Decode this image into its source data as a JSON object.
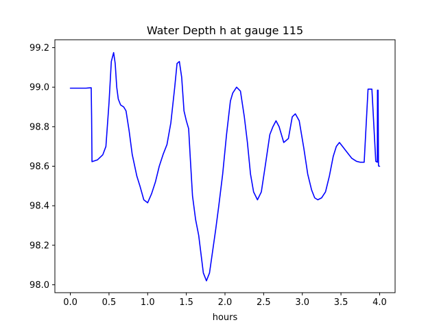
{
  "chart_data": {
    "type": "line",
    "title": "Water Depth h at gauge 115",
    "xlabel": "hours",
    "ylabel": "",
    "xlim": [
      -0.2,
      4.2
    ],
    "ylim": [
      97.96,
      99.24
    ],
    "xticks": [
      0.0,
      0.5,
      1.0,
      1.5,
      2.0,
      2.5,
      3.0,
      3.5,
      4.0
    ],
    "xtick_labels": [
      "0.0",
      "0.5",
      "1.0",
      "1.5",
      "2.0",
      "2.5",
      "3.0",
      "3.5",
      "4.0"
    ],
    "yticks": [
      98.0,
      98.2,
      98.4,
      98.6,
      98.8,
      99.0,
      99.2
    ],
    "ytick_labels": [
      "98.0",
      "98.2",
      "98.4",
      "98.6",
      "98.8",
      "99.0",
      "99.2"
    ],
    "grid": false,
    "series": [
      {
        "color": "#0000ff",
        "x": [
          0.0,
          0.1,
          0.2,
          0.27,
          0.275,
          0.28,
          0.35,
          0.42,
          0.46,
          0.5,
          0.53,
          0.56,
          0.58,
          0.6,
          0.62,
          0.65,
          0.69,
          0.72,
          0.76,
          0.8,
          0.86,
          0.9,
          0.95,
          1.0,
          1.05,
          1.1,
          1.15,
          1.2,
          1.25,
          1.3,
          1.35,
          1.38,
          1.41,
          1.44,
          1.47,
          1.5,
          1.53,
          1.55,
          1.58,
          1.62,
          1.66,
          1.72,
          1.76,
          1.8,
          1.84,
          1.88,
          1.92,
          1.97,
          2.02,
          2.07,
          2.1,
          2.15,
          2.2,
          2.25,
          2.29,
          2.33,
          2.37,
          2.42,
          2.47,
          2.52,
          2.58,
          2.62,
          2.66,
          2.7,
          2.76,
          2.82,
          2.87,
          2.91,
          2.96,
          3.02,
          3.07,
          3.12,
          3.16,
          3.2,
          3.25,
          3.3,
          3.35,
          3.4,
          3.44,
          3.48,
          3.52,
          3.58,
          3.64,
          3.7,
          3.75,
          3.8,
          3.85,
          3.9,
          3.95,
          3.97,
          3.972,
          3.98,
          3.985,
          3.988,
          3.992,
          4.0
        ],
        "y": [
          98.995,
          98.995,
          98.995,
          98.997,
          98.85,
          98.623,
          98.632,
          98.658,
          98.7,
          98.92,
          99.13,
          99.175,
          99.12,
          99.0,
          98.94,
          98.91,
          98.9,
          98.88,
          98.78,
          98.66,
          98.55,
          98.5,
          98.43,
          98.415,
          98.46,
          98.52,
          98.6,
          98.66,
          98.71,
          98.82,
          99.0,
          99.12,
          99.13,
          99.05,
          98.88,
          98.83,
          98.79,
          98.65,
          98.45,
          98.33,
          98.25,
          98.06,
          98.02,
          98.06,
          98.17,
          98.28,
          98.4,
          98.56,
          98.76,
          98.93,
          98.97,
          99.0,
          98.98,
          98.85,
          98.72,
          98.56,
          98.47,
          98.43,
          98.47,
          98.6,
          98.76,
          98.8,
          98.83,
          98.8,
          98.72,
          98.74,
          98.85,
          98.865,
          98.83,
          98.69,
          98.56,
          98.48,
          98.44,
          98.43,
          98.44,
          98.47,
          98.55,
          98.65,
          98.7,
          98.72,
          98.7,
          98.67,
          98.64,
          98.625,
          98.62,
          98.62,
          98.99,
          98.99,
          98.625,
          98.62,
          98.985,
          98.985,
          98.605,
          98.6,
          98.6,
          98.6
        ]
      }
    ]
  }
}
